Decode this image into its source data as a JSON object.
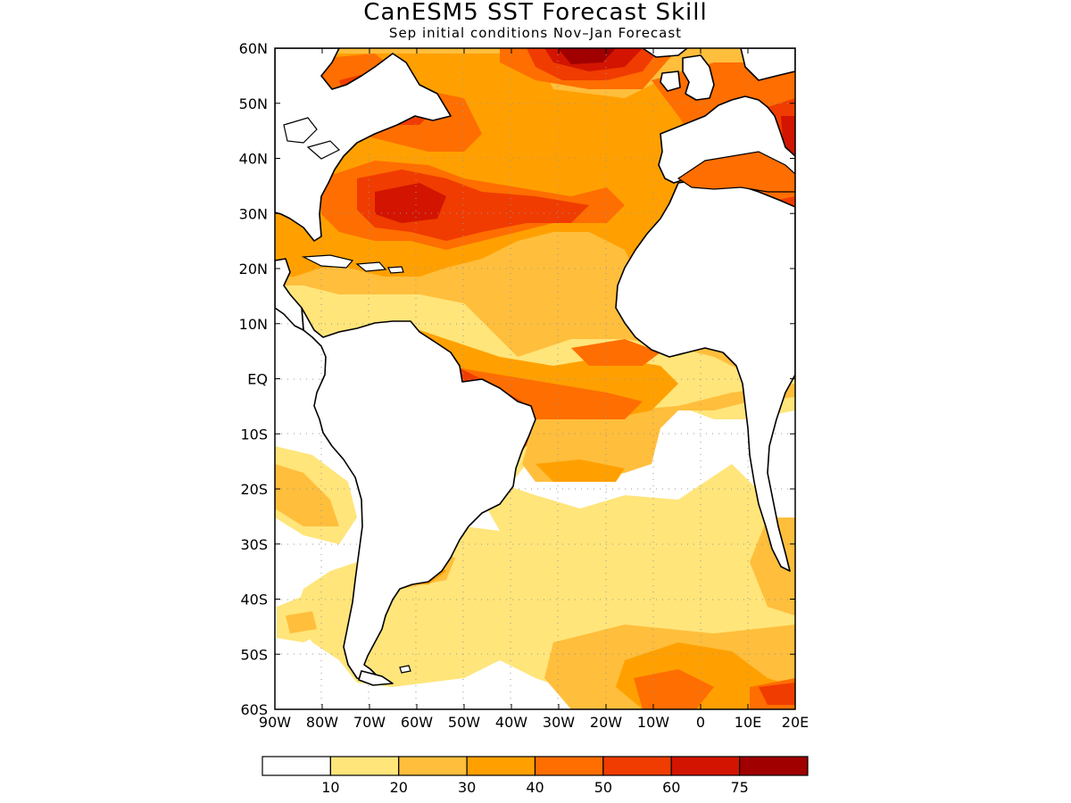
{
  "title": "CanESM5 SST Forecast Skill",
  "subtitle": "Sep initial conditions  Nov–Jan Forecast",
  "lat_labels": [
    "60N",
    "50N",
    "40N",
    "30N",
    "20N",
    "10N",
    "EQ",
    "10S",
    "20S",
    "30S",
    "40S",
    "50S",
    "60S"
  ],
  "lon_labels": [
    "90W",
    "80W",
    "70W",
    "60W",
    "50W",
    "40W",
    "30W",
    "20W",
    "10W",
    "0",
    "10E",
    "20E"
  ],
  "colorbar": {
    "labels": [
      "10",
      "20",
      "30",
      "40",
      "50",
      "60",
      "75"
    ],
    "colors": [
      "#ffffff",
      "#ffe57a",
      "#ffbe3c",
      "#ffa000",
      "#ff6e00",
      "#f03c00",
      "#d21400",
      "#a00000"
    ]
  }
}
